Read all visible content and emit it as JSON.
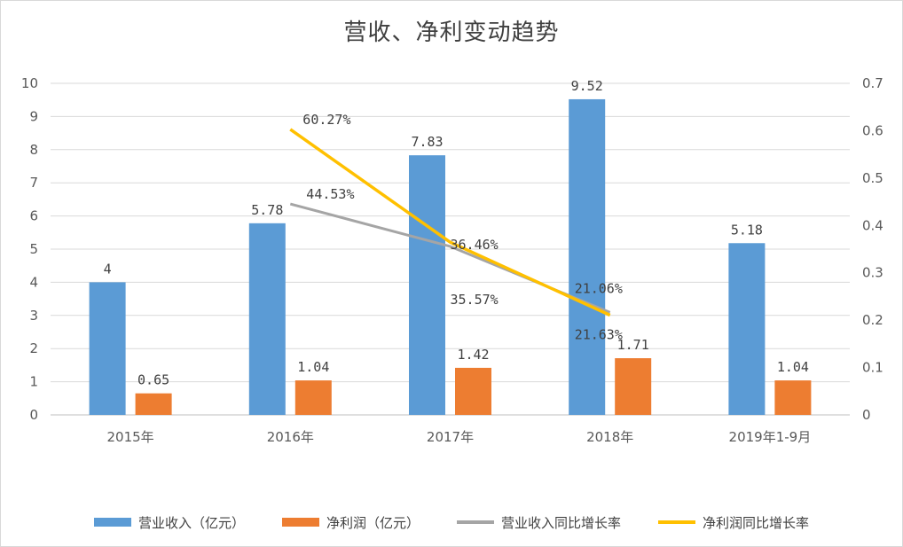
{
  "chart_data": {
    "type": "bar",
    "title": "营收、净利变动趋势",
    "categories": [
      "2015年",
      "2016年",
      "2017年",
      "2018年",
      "2019年1-9月"
    ],
    "ylim": [
      0,
      10
    ],
    "y_ticks": [
      "0",
      "1",
      "2",
      "3",
      "4",
      "5",
      "6",
      "7",
      "8",
      "9",
      "10"
    ],
    "y2lim": [
      0,
      0.7
    ],
    "y2_ticks": [
      "0",
      "0.1",
      "0.2",
      "0.3",
      "0.4",
      "0.5",
      "0.6",
      "0.7"
    ],
    "grid": true,
    "legend_position": "bottom",
    "series": [
      {
        "name": "营业收入（亿元）",
        "kind": "bar",
        "axis": "left",
        "color": "#5b9bd5",
        "values": [
          4,
          5.78,
          7.83,
          9.52,
          5.18
        ],
        "labels": [
          "4",
          "5.78",
          "7.83",
          "9.52",
          "5.18"
        ]
      },
      {
        "name": "净利润（亿元）",
        "kind": "bar",
        "axis": "left",
        "color": "#ed7d31",
        "values": [
          0.65,
          1.04,
          1.42,
          1.71,
          1.04
        ],
        "labels": [
          "0.65",
          "1.04",
          "1.42",
          "1.71",
          "1.04"
        ]
      },
      {
        "name": "营业收入同比增长率",
        "kind": "line",
        "axis": "right",
        "color": "#a5a5a5",
        "values": [
          null,
          0.4453,
          0.3557,
          0.2163,
          null
        ],
        "labels": [
          null,
          "44.53%",
          "35.57%",
          "21.63%",
          null
        ]
      },
      {
        "name": "净利润同比增长率",
        "kind": "line",
        "axis": "right",
        "color": "#ffc000",
        "values": [
          null,
          0.6027,
          0.3646,
          0.2106,
          null
        ],
        "labels": [
          null,
          "60.27%",
          "36.46%",
          "21.06%",
          null
        ]
      }
    ]
  }
}
